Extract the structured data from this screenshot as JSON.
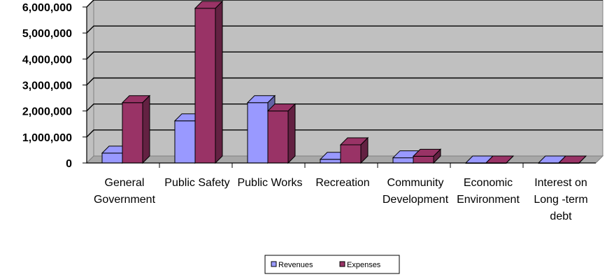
{
  "chart_data": {
    "type": "bar",
    "categories": [
      [
        "General",
        "Government"
      ],
      [
        "Public Safety"
      ],
      [
        "Public Works"
      ],
      [
        "Recreation"
      ],
      [
        "Community",
        "Development"
      ],
      [
        "Economic",
        "Environment"
      ],
      [
        "Interest on",
        "Long -term",
        "debt"
      ]
    ],
    "series": [
      {
        "name": "Revenues",
        "values": [
          380000,
          1620000,
          2320000,
          140000,
          200000,
          0,
          0
        ],
        "color": "#9999ff"
      },
      {
        "name": "Expenses",
        "values": [
          2320000,
          5950000,
          2000000,
          700000,
          260000,
          0,
          0
        ],
        "color": "#993366"
      }
    ],
    "yticks": [
      "0",
      "1,000,000",
      "2,000,000",
      "3,000,000",
      "4,000,000",
      "5,000,000",
      "6,000,000"
    ],
    "ylim": [
      0,
      6000000
    ],
    "title": "",
    "xlabel": "",
    "ylabel": "",
    "grid": true,
    "plot_background": "#c0c0c0",
    "legend_position": "bottom"
  }
}
